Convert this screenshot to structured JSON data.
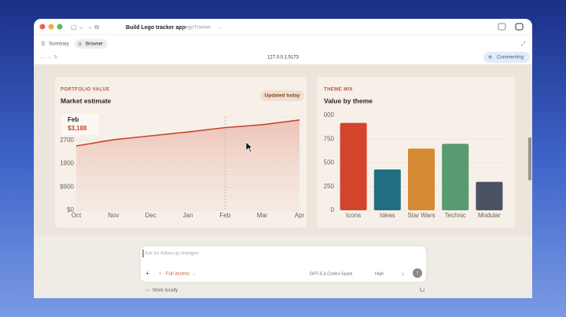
{
  "window": {
    "title": "Build Lego tracker app",
    "project": "LegoTracker",
    "tabs": [
      "Summary",
      "Browser"
    ],
    "url": "127.0.0.1:5173",
    "commenting": "Commenting"
  },
  "chart_data": [
    {
      "type": "line",
      "eyebrow": "PORTFOLIO VALUE",
      "title": "Market estimate",
      "badge": "Updated today",
      "categories": [
        "Oct",
        "Nov",
        "Dec",
        "Jan",
        "Feb",
        "Mar",
        "Apr"
      ],
      "values": [
        2480,
        2720,
        2870,
        3020,
        3188,
        3300,
        3480
      ],
      "color": "#c9452e",
      "ylim": [
        0,
        3600
      ],
      "yticks": [
        {
          "value": 0,
          "label": "$0"
        },
        {
          "value": 900,
          "label": "$900"
        },
        1800,
        2700,
        {
          "value": 3600,
          "label": "$"
        }
      ],
      "tooltip": {
        "category": "Feb",
        "value_label": "$3,188"
      }
    },
    {
      "type": "bar",
      "eyebrow": "THEME MIX",
      "title": "Value by theme",
      "categories": [
        "Icons",
        "Ideas",
        "Star Wars",
        "Technic",
        "Modular"
      ],
      "values": [
        920,
        430,
        650,
        700,
        300
      ],
      "colors": [
        "#d4432c",
        "#1f6f80",
        "#d68a33",
        "#5a9a73",
        "#4a5263"
      ],
      "ylim": [
        0,
        1000
      ],
      "yticks": [
        0,
        250,
        500,
        750,
        {
          "value": 1000,
          "label": "000"
        }
      ]
    }
  ],
  "composer": {
    "placeholder": "Ask for follow-up changes",
    "access": "Full access",
    "model": "GPT-5.3-Codex-Spark",
    "effort": "High",
    "footer": "Work locally"
  }
}
